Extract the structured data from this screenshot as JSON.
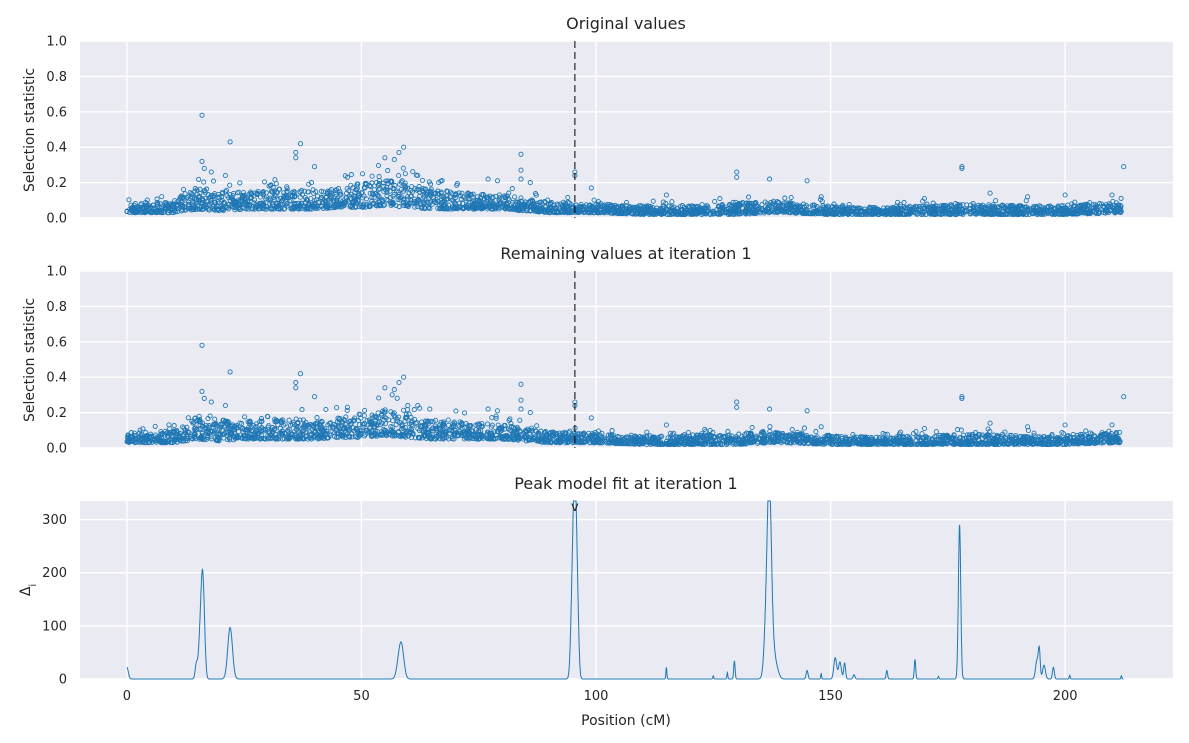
{
  "figure": {
    "xlabel": "Position (cM)",
    "xticks": [
      "0",
      "50",
      "100",
      "150",
      "200"
    ]
  },
  "chart_data": [
    {
      "type": "scatter",
      "title": "Original values",
      "ylabel": "Selection statistic",
      "xlim": [
        -10,
        223
      ],
      "ylim": [
        0,
        1.0
      ],
      "yticks": [
        "0.0",
        "0.2",
        "0.4",
        "0.6",
        "0.8",
        "1.0"
      ],
      "xticks": [
        0,
        50,
        100,
        150,
        200
      ],
      "marker_line_x": 95.5,
      "color": "#1f77b4",
      "points": [
        [
          16,
          0.58
        ],
        [
          22,
          0.43
        ],
        [
          37,
          0.42
        ],
        [
          36,
          0.37
        ],
        [
          36,
          0.34
        ],
        [
          59,
          0.4
        ],
        [
          58,
          0.37
        ],
        [
          57,
          0.33
        ],
        [
          55,
          0.34
        ],
        [
          84,
          0.36
        ],
        [
          84,
          0.27
        ],
        [
          95.5,
          0.26
        ],
        [
          95.5,
          0.24
        ],
        [
          178,
          0.29
        ],
        [
          178,
          0.28
        ],
        [
          212.5,
          0.29
        ],
        [
          130,
          0.26
        ],
        [
          130,
          0.23
        ],
        [
          137,
          0.22
        ],
        [
          145,
          0.21
        ],
        [
          16,
          0.32
        ],
        [
          16.5,
          0.28
        ],
        [
          18,
          0.26
        ],
        [
          21,
          0.24
        ],
        [
          40,
          0.29
        ],
        [
          47,
          0.23
        ],
        [
          62,
          0.24
        ],
        [
          77,
          0.22
        ],
        [
          79,
          0.21
        ],
        [
          84,
          0.22
        ],
        [
          86,
          0.2
        ],
        [
          99,
          0.17
        ],
        [
          115,
          0.13
        ],
        [
          148,
          0.12
        ],
        [
          170,
          0.11
        ],
        [
          184,
          0.14
        ],
        [
          192,
          0.12
        ],
        [
          200,
          0.13
        ],
        [
          210,
          0.13
        ]
      ],
      "bands": [
        [
          0,
          0.03,
          0.08
        ],
        [
          5,
          0.03,
          0.09
        ],
        [
          10,
          0.03,
          0.1
        ],
        [
          15,
          0.05,
          0.18
        ],
        [
          20,
          0.04,
          0.16
        ],
        [
          25,
          0.05,
          0.15
        ],
        [
          30,
          0.05,
          0.16
        ],
        [
          35,
          0.05,
          0.17
        ],
        [
          40,
          0.05,
          0.15
        ],
        [
          45,
          0.06,
          0.17
        ],
        [
          50,
          0.06,
          0.2
        ],
        [
          55,
          0.07,
          0.22
        ],
        [
          60,
          0.06,
          0.2
        ],
        [
          65,
          0.05,
          0.16
        ],
        [
          70,
          0.05,
          0.15
        ],
        [
          75,
          0.05,
          0.14
        ],
        [
          80,
          0.05,
          0.13
        ],
        [
          85,
          0.04,
          0.11
        ],
        [
          90,
          0.03,
          0.09
        ],
        [
          95,
          0.03,
          0.09
        ],
        [
          100,
          0.03,
          0.08
        ],
        [
          110,
          0.02,
          0.07
        ],
        [
          120,
          0.02,
          0.07
        ],
        [
          130,
          0.02,
          0.08
        ],
        [
          137,
          0.03,
          0.1
        ],
        [
          140,
          0.03,
          0.09
        ],
        [
          150,
          0.02,
          0.07
        ],
        [
          160,
          0.02,
          0.06
        ],
        [
          170,
          0.02,
          0.07
        ],
        [
          180,
          0.02,
          0.08
        ],
        [
          190,
          0.02,
          0.07
        ],
        [
          200,
          0.02,
          0.07
        ],
        [
          212,
          0.03,
          0.09
        ]
      ]
    },
    {
      "type": "scatter",
      "title": "Remaining values at iteration 1",
      "ylabel": "Selection statistic",
      "xlim": [
        -10,
        223
      ],
      "ylim": [
        0,
        1.0
      ],
      "yticks": [
        "0.0",
        "0.2",
        "0.4",
        "0.6",
        "0.8",
        "1.0"
      ],
      "xticks": [
        0,
        50,
        100,
        150,
        200
      ],
      "marker_line_x": 95.5,
      "color": "#1f77b4",
      "points": [
        [
          16,
          0.58
        ],
        [
          22,
          0.43
        ],
        [
          37,
          0.42
        ],
        [
          36,
          0.37
        ],
        [
          36,
          0.34
        ],
        [
          59,
          0.4
        ],
        [
          58,
          0.37
        ],
        [
          57,
          0.33
        ],
        [
          55,
          0.34
        ],
        [
          84,
          0.36
        ],
        [
          84,
          0.27
        ],
        [
          95.5,
          0.26
        ],
        [
          95.5,
          0.24
        ],
        [
          178,
          0.29
        ],
        [
          178,
          0.28
        ],
        [
          212.5,
          0.29
        ],
        [
          130,
          0.26
        ],
        [
          130,
          0.23
        ],
        [
          137,
          0.22
        ],
        [
          145,
          0.21
        ],
        [
          16,
          0.32
        ],
        [
          16.5,
          0.28
        ],
        [
          18,
          0.26
        ],
        [
          21,
          0.24
        ],
        [
          40,
          0.29
        ],
        [
          47,
          0.23
        ],
        [
          62,
          0.24
        ],
        [
          77,
          0.22
        ],
        [
          79,
          0.21
        ],
        [
          84,
          0.22
        ],
        [
          86,
          0.2
        ],
        [
          99,
          0.17
        ],
        [
          115,
          0.13
        ],
        [
          148,
          0.12
        ],
        [
          170,
          0.11
        ],
        [
          184,
          0.14
        ],
        [
          192,
          0.12
        ],
        [
          200,
          0.13
        ],
        [
          210,
          0.13
        ]
      ],
      "bands": [
        [
          0,
          0.03,
          0.08
        ],
        [
          5,
          0.03,
          0.09
        ],
        [
          10,
          0.03,
          0.1
        ],
        [
          15,
          0.05,
          0.18
        ],
        [
          20,
          0.04,
          0.16
        ],
        [
          25,
          0.05,
          0.15
        ],
        [
          30,
          0.05,
          0.16
        ],
        [
          35,
          0.05,
          0.17
        ],
        [
          40,
          0.05,
          0.15
        ],
        [
          45,
          0.06,
          0.17
        ],
        [
          50,
          0.06,
          0.2
        ],
        [
          55,
          0.07,
          0.22
        ],
        [
          60,
          0.06,
          0.2
        ],
        [
          65,
          0.05,
          0.16
        ],
        [
          70,
          0.05,
          0.15
        ],
        [
          75,
          0.05,
          0.14
        ],
        [
          80,
          0.05,
          0.13
        ],
        [
          85,
          0.04,
          0.11
        ],
        [
          90,
          0.03,
          0.09
        ],
        [
          95,
          0.03,
          0.09
        ],
        [
          100,
          0.03,
          0.08
        ],
        [
          110,
          0.02,
          0.07
        ],
        [
          120,
          0.02,
          0.07
        ],
        [
          130,
          0.02,
          0.08
        ],
        [
          137,
          0.03,
          0.1
        ],
        [
          140,
          0.03,
          0.09
        ],
        [
          150,
          0.02,
          0.07
        ],
        [
          160,
          0.02,
          0.06
        ],
        [
          170,
          0.02,
          0.07
        ],
        [
          180,
          0.02,
          0.08
        ],
        [
          190,
          0.02,
          0.07
        ],
        [
          200,
          0.02,
          0.07
        ],
        [
          212,
          0.03,
          0.09
        ]
      ]
    },
    {
      "type": "line",
      "title": "Peak model fit at iteration 1",
      "ylabel": "Δi",
      "xlim": [
        -10,
        223
      ],
      "ylim": [
        0,
        335
      ],
      "yticks": [
        "0",
        "100",
        "200",
        "300"
      ],
      "xticks": [
        0,
        50,
        100,
        150,
        200
      ],
      "marker_x": 95.5,
      "marker_label": "v",
      "color": "#1f77b4",
      "peaks": [
        [
          0,
          22,
          0.3
        ],
        [
          14.8,
          28,
          0.25
        ],
        [
          15.5,
          60,
          0.3
        ],
        [
          16,
          145,
          0.3
        ],
        [
          16.4,
          100,
          0.3
        ],
        [
          22,
          97,
          0.5
        ],
        [
          58,
          30,
          0.5
        ],
        [
          58.6,
          52,
          0.5
        ],
        [
          95,
          180,
          0.35
        ],
        [
          95.5,
          308,
          0.3
        ],
        [
          96,
          150,
          0.3
        ],
        [
          115,
          22,
          0.1
        ],
        [
          125,
          6,
          0.1
        ],
        [
          128,
          12,
          0.1
        ],
        [
          129.5,
          34,
          0.15
        ],
        [
          136.5,
          160,
          0.5
        ],
        [
          137,
          255,
          0.4
        ],
        [
          137.6,
          60,
          0.5
        ],
        [
          138.5,
          18,
          0.5
        ],
        [
          145,
          16,
          0.2
        ],
        [
          148,
          10,
          0.1
        ],
        [
          151,
          40,
          0.3
        ],
        [
          152,
          32,
          0.3
        ],
        [
          153,
          30,
          0.2
        ],
        [
          155,
          8,
          0.2
        ],
        [
          162,
          16,
          0.15
        ],
        [
          168,
          37,
          0.15
        ],
        [
          173,
          5,
          0.1
        ],
        [
          177.5,
          290,
          0.25
        ],
        [
          194,
          35,
          0.3
        ],
        [
          194.5,
          52,
          0.2
        ],
        [
          195.5,
          26,
          0.3
        ],
        [
          197.5,
          22,
          0.2
        ],
        [
          201,
          7,
          0.1
        ],
        [
          212,
          6,
          0.1
        ]
      ]
    }
  ]
}
